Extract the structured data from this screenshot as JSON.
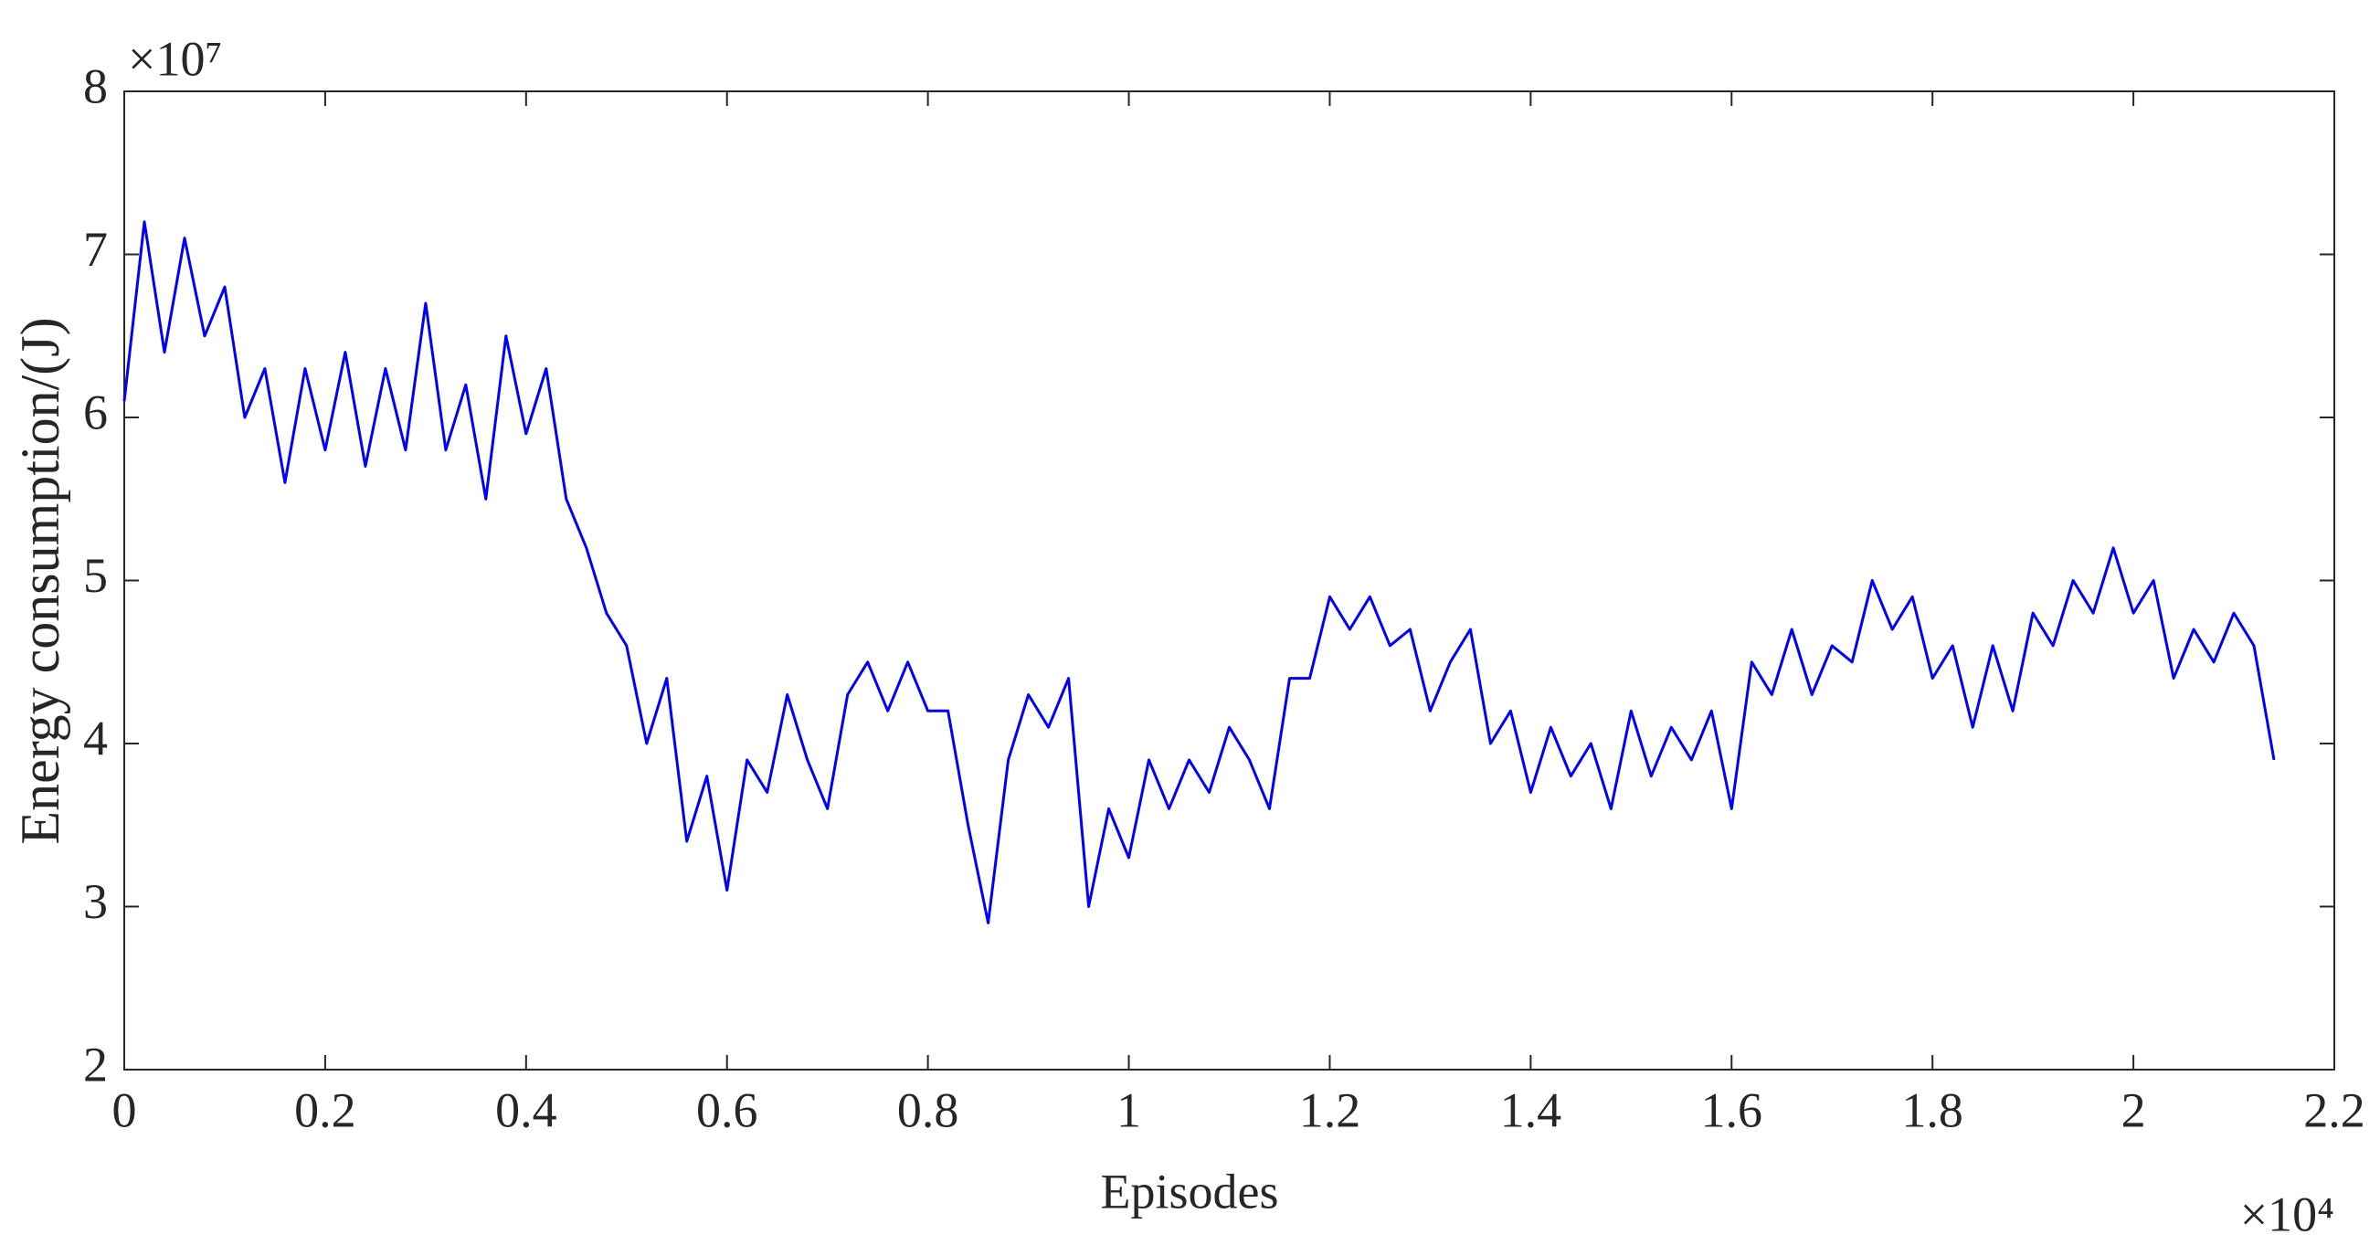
{
  "chart_data": {
    "type": "line",
    "xlabel": "Episodes",
    "ylabel": "Energy consumption/(J)",
    "x_multiplier": "×10⁴",
    "y_multiplier": "×10⁷",
    "color": "#0000ff",
    "grid": false,
    "xlim": [
      0,
      2.2
    ],
    "ylim": [
      2,
      8
    ],
    "xticks": [
      0,
      0.2,
      0.4,
      0.6,
      0.8,
      1,
      1.2,
      1.4,
      1.6,
      1.8,
      2,
      2.2
    ],
    "yticks": [
      2,
      3,
      4,
      5,
      6,
      7,
      8
    ],
    "x": [
      0,
      0.02,
      0.04,
      0.06,
      0.08,
      0.1,
      0.12,
      0.14,
      0.16,
      0.18,
      0.2,
      0.22,
      0.24,
      0.26,
      0.28,
      0.3,
      0.32,
      0.34,
      0.36,
      0.38,
      0.4,
      0.42,
      0.44,
      0.46,
      0.48,
      0.5,
      0.52,
      0.54,
      0.56,
      0.58,
      0.6,
      0.62,
      0.64,
      0.66,
      0.68,
      0.7,
      0.72,
      0.74,
      0.76,
      0.78,
      0.8,
      0.82,
      0.84,
      0.86,
      0.88,
      0.9,
      0.92,
      0.94,
      0.96,
      0.98,
      1,
      1.02,
      1.04,
      1.06,
      1.08,
      1.1,
      1.12,
      1.14,
      1.16,
      1.18,
      1.2,
      1.22,
      1.24,
      1.26,
      1.28,
      1.3,
      1.32,
      1.34,
      1.36,
      1.38,
      1.4,
      1.42,
      1.44,
      1.46,
      1.48,
      1.5,
      1.52,
      1.54,
      1.56,
      1.58,
      1.6,
      1.62,
      1.64,
      1.66,
      1.68,
      1.7,
      1.72,
      1.74,
      1.76,
      1.78,
      1.8,
      1.82,
      1.84,
      1.86,
      1.88,
      1.9,
      1.92,
      1.94,
      1.96,
      1.98,
      2,
      2.02,
      2.04,
      2.06,
      2.08,
      2.1,
      2.12,
      2.14
    ],
    "values": [
      6.1,
      7.2,
      6.4,
      7.1,
      6.5,
      6.8,
      6.0,
      6.3,
      5.6,
      6.3,
      5.8,
      6.4,
      5.7,
      6.3,
      5.8,
      6.7,
      5.8,
      6.2,
      5.5,
      6.5,
      5.9,
      6.3,
      5.5,
      5.2,
      4.8,
      4.6,
      4.0,
      4.4,
      3.4,
      3.8,
      3.1,
      3.9,
      3.7,
      4.3,
      3.9,
      3.6,
      4.3,
      4.5,
      4.2,
      4.5,
      4.2,
      4.2,
      3.5,
      2.9,
      3.9,
      4.3,
      4.1,
      4.4,
      3.0,
      3.6,
      3.3,
      3.9,
      3.6,
      3.9,
      3.7,
      4.1,
      3.9,
      3.6,
      4.4,
      4.4,
      4.9,
      4.7,
      4.9,
      4.6,
      4.7,
      4.2,
      4.5,
      4.7,
      4.0,
      4.2,
      3.7,
      4.1,
      3.8,
      4.0,
      3.6,
      4.2,
      3.8,
      4.1,
      3.9,
      4.2,
      3.6,
      4.5,
      4.3,
      4.7,
      4.3,
      4.6,
      4.5,
      5.0,
      4.7,
      4.9,
      4.4,
      4.6,
      4.1,
      4.6,
      4.2,
      4.8,
      4.6,
      5.0,
      4.8,
      5.2,
      4.8,
      5.0,
      4.4,
      4.7,
      4.5,
      4.8,
      4.6,
      3.9
    ]
  }
}
